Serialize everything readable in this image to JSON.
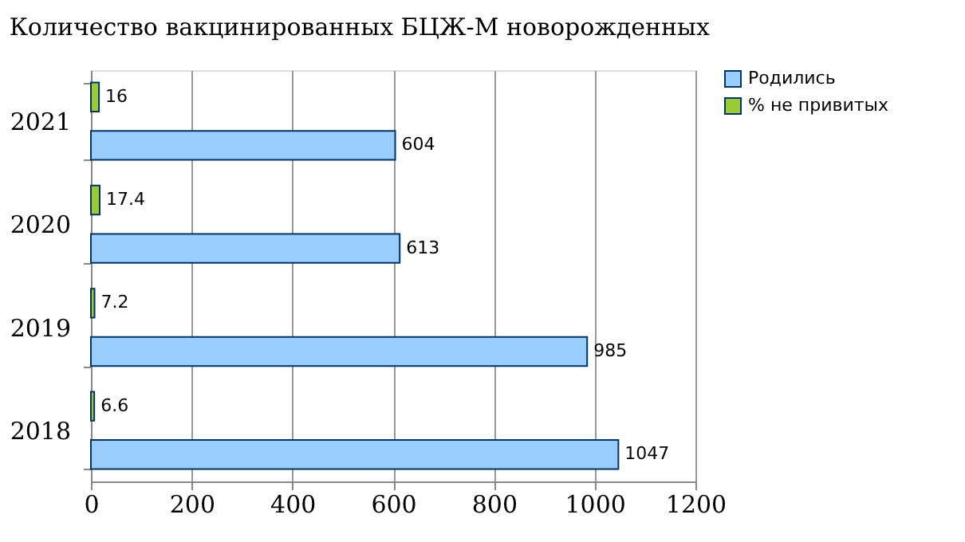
{
  "chart_data": {
    "type": "bar",
    "orientation": "horizontal",
    "title": "Количество вакцинированных БЦЖ-М новорожденных",
    "categories": [
      "2021",
      "2020",
      "2019",
      "2018"
    ],
    "series": [
      {
        "name": "Родились",
        "color": "#99ccff",
        "values": [
          604,
          613,
          985,
          1047
        ]
      },
      {
        "name": "% не привитых",
        "color": "#99cc33",
        "values": [
          16,
          17.4,
          7.2,
          6.6
        ]
      }
    ],
    "xlim": [
      0,
      1200
    ],
    "xticks": [
      0,
      200,
      400,
      600,
      800,
      1000,
      1200
    ],
    "grid": "x",
    "legend": "right",
    "data_labels": true
  }
}
